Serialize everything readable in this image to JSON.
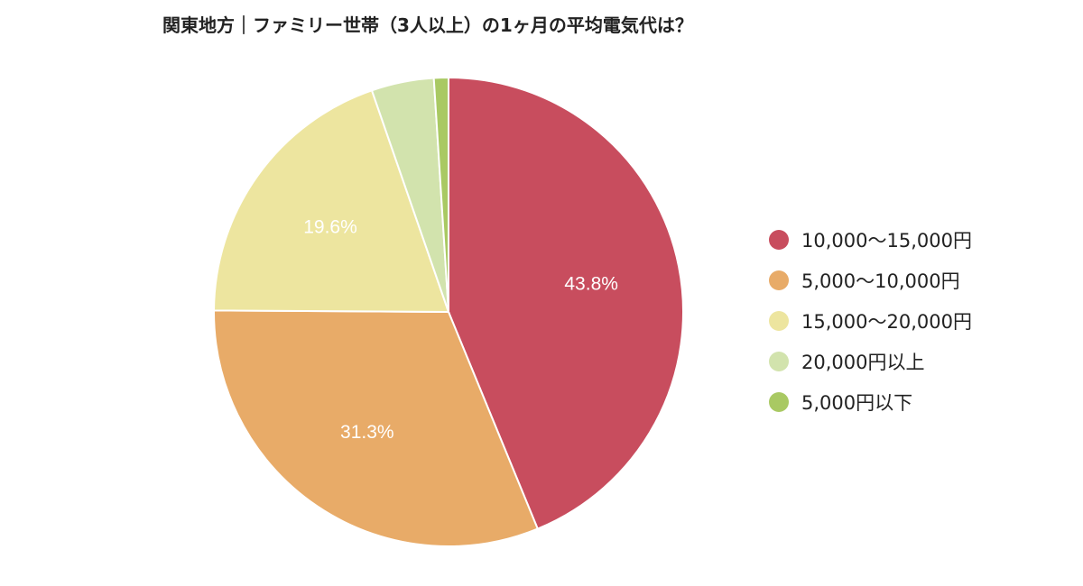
{
  "chart_data": {
    "type": "pie",
    "title": "関東地方｜ファミリー世帯（3人以上）の1ヶ月の平均電気代は？",
    "categories": [
      "10,000〜15,000円",
      "5,000〜10,000円",
      "15,000〜20,000円",
      "20,000円以上",
      "5,000円以下"
    ],
    "values": [
      43.8,
      31.3,
      19.6,
      4.3,
      1.0
    ],
    "data_labels": [
      "43.8%",
      "31.3%",
      "19.6%",
      "",
      ""
    ],
    "colors": [
      "#c84d5e",
      "#e8ab68",
      "#ede59f",
      "#d2e3ad",
      "#a9c963"
    ],
    "legend_position": "right",
    "start_angle_deg": 0,
    "direction": "clockwise"
  }
}
